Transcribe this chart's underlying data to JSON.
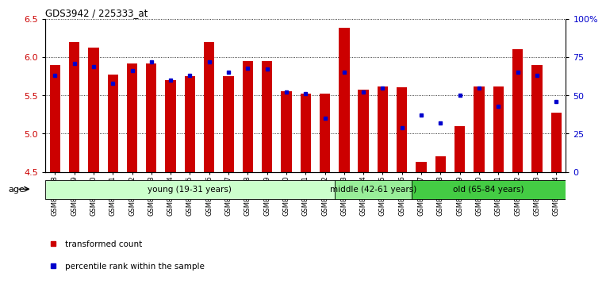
{
  "title": "GDS3942 / 225333_at",
  "samples": [
    "GSM812988",
    "GSM812989",
    "GSM812990",
    "GSM812991",
    "GSM812992",
    "GSM812993",
    "GSM812994",
    "GSM812995",
    "GSM812996",
    "GSM812997",
    "GSM812998",
    "GSM812999",
    "GSM813000",
    "GSM813001",
    "GSM813002",
    "GSM813003",
    "GSM813004",
    "GSM813005",
    "GSM813006",
    "GSM813007",
    "GSM813008",
    "GSM813009",
    "GSM813010",
    "GSM813011",
    "GSM813012",
    "GSM813013",
    "GSM813014"
  ],
  "bar_values": [
    5.9,
    6.2,
    6.12,
    5.77,
    5.92,
    5.92,
    5.7,
    5.75,
    6.2,
    5.75,
    5.95,
    5.95,
    5.55,
    5.52,
    5.52,
    6.38,
    5.57,
    5.62,
    5.61,
    4.63,
    4.7,
    5.1,
    5.62,
    5.62,
    6.1,
    5.9,
    5.27
  ],
  "blue_values_pct": [
    63,
    71,
    69,
    58,
    66,
    72,
    60,
    63,
    72,
    65,
    68,
    67,
    52,
    51,
    35,
    65,
    52,
    55,
    29,
    37,
    32,
    50,
    55,
    43,
    65,
    63,
    46
  ],
  "ylim": [
    4.5,
    6.5
  ],
  "y2lim": [
    0,
    100
  ],
  "yticks": [
    4.5,
    5.0,
    5.5,
    6.0,
    6.5
  ],
  "y2ticks": [
    0,
    25,
    50,
    75,
    100
  ],
  "y2ticklabels": [
    "0",
    "25",
    "50",
    "75",
    "100%"
  ],
  "groups": [
    {
      "label": "young (19-31 years)",
      "start": 0,
      "end": 15,
      "color": "#ccffcc"
    },
    {
      "label": "middle (42-61 years)",
      "start": 15,
      "end": 19,
      "color": "#99ee99"
    },
    {
      "label": "old (65-84 years)",
      "start": 19,
      "end": 27,
      "color": "#44cc44"
    }
  ],
  "bar_color": "#cc0000",
  "blue_color": "#0000cc",
  "bar_width": 0.55,
  "bar_base": 4.5,
  "legend_items": [
    {
      "label": "transformed count",
      "color": "#cc0000"
    },
    {
      "label": "percentile rank within the sample",
      "color": "#0000cc"
    }
  ],
  "plot_bg": "#ffffff"
}
